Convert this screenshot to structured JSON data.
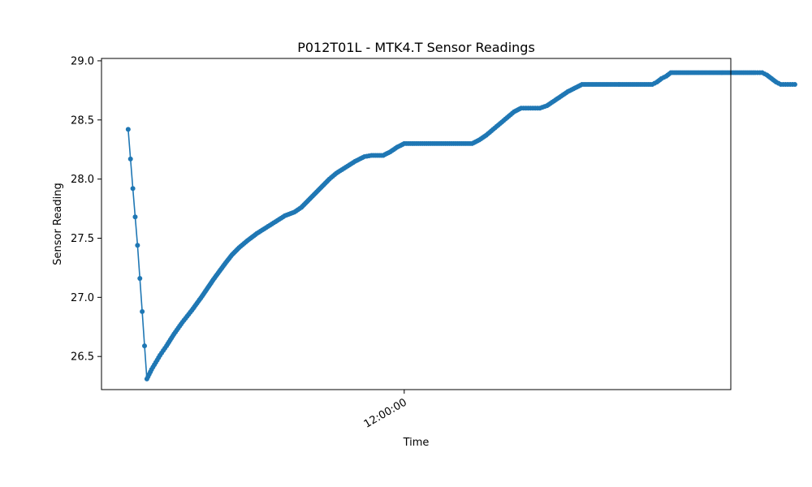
{
  "chart_data": {
    "type": "line",
    "title": "P012T01L - MTK4.T Sensor Readings",
    "xlabel": "Time",
    "ylabel": "Sensor Reading",
    "x_ticks": [
      {
        "label": "12:00:00",
        "minutes": 0
      }
    ],
    "xlim_minutes": [
      -64.7,
      69.8
    ],
    "ylim": [
      26.22,
      29.02
    ],
    "y_ticks": [
      "26.5",
      "27.0",
      "27.5",
      "28.0",
      "28.5",
      "29.0"
    ],
    "grid": false,
    "marker": "circle",
    "series": [
      {
        "color": "#1f77b4",
        "points": [
          [
            -59.0,
            28.42
          ],
          [
            -58.5,
            28.17
          ],
          [
            -58.0,
            27.92
          ],
          [
            -57.5,
            27.68
          ],
          [
            -57.0,
            27.44
          ],
          [
            -56.5,
            27.16
          ],
          [
            -56.0,
            26.88
          ],
          [
            -55.5,
            26.59
          ],
          [
            -55.0,
            26.31
          ],
          [
            -54.5,
            26.35
          ],
          [
            -54.0,
            26.39
          ],
          [
            -53.4,
            26.43
          ],
          [
            -52.8,
            26.47
          ],
          [
            -52.2,
            26.51
          ],
          [
            -51.5,
            26.55
          ],
          [
            -50.8,
            26.59
          ],
          [
            -50.0,
            26.64
          ],
          [
            -49.2,
            26.69
          ],
          [
            -48.3,
            26.74
          ],
          [
            -47.4,
            26.79
          ],
          [
            -46.4,
            26.84
          ],
          [
            -45.4,
            26.89
          ],
          [
            -44.3,
            26.95
          ],
          [
            -43.2,
            27.01
          ],
          [
            -42.0,
            27.08
          ],
          [
            -40.8,
            27.15
          ],
          [
            -39.5,
            27.22
          ],
          [
            -38.2,
            27.29
          ],
          [
            -36.8,
            27.36
          ],
          [
            -35.3,
            27.42
          ],
          [
            -33.5,
            27.48
          ],
          [
            -31.5,
            27.54
          ],
          [
            -29.5,
            27.59
          ],
          [
            -27.5,
            27.64
          ],
          [
            -25.5,
            27.69
          ],
          [
            -23.5,
            27.72
          ],
          [
            -22.0,
            27.76
          ],
          [
            -20.5,
            27.82
          ],
          [
            -19.0,
            27.88
          ],
          [
            -17.5,
            27.94
          ],
          [
            -16.0,
            28.0
          ],
          [
            -14.5,
            28.05
          ],
          [
            -12.5,
            28.1
          ],
          [
            -10.5,
            28.15
          ],
          [
            -8.5,
            28.19
          ],
          [
            -7.0,
            28.2
          ],
          [
            -4.5,
            28.2
          ],
          [
            -3.0,
            28.23
          ],
          [
            -1.5,
            28.27
          ],
          [
            0.0,
            28.3
          ],
          [
            3.0,
            28.3
          ],
          [
            7.0,
            28.3
          ],
          [
            11.0,
            28.3
          ],
          [
            14.5,
            28.3
          ],
          [
            16.0,
            28.33
          ],
          [
            17.5,
            28.37
          ],
          [
            19.0,
            28.42
          ],
          [
            20.5,
            28.47
          ],
          [
            22.0,
            28.52
          ],
          [
            23.5,
            28.57
          ],
          [
            25.0,
            28.6
          ],
          [
            27.0,
            28.6
          ],
          [
            29.0,
            28.6
          ],
          [
            30.5,
            28.62
          ],
          [
            32.0,
            28.66
          ],
          [
            33.5,
            28.7
          ],
          [
            35.0,
            28.74
          ],
          [
            36.5,
            28.77
          ],
          [
            38.0,
            28.8
          ],
          [
            41.0,
            28.8
          ],
          [
            44.0,
            28.8
          ],
          [
            47.0,
            28.8
          ],
          [
            50.0,
            28.8
          ],
          [
            53.0,
            28.8
          ],
          [
            54.0,
            28.82
          ],
          [
            55.0,
            28.85
          ],
          [
            56.0,
            28.87
          ],
          [
            57.0,
            28.9
          ],
          [
            60.0,
            28.9
          ],
          [
            63.0,
            28.9
          ],
          [
            66.0,
            28.9
          ],
          [
            69.0,
            28.9
          ],
          [
            72.0,
            28.9
          ],
          [
            75.0,
            28.9
          ],
          [
            76.5,
            28.9
          ],
          [
            77.5,
            28.88
          ],
          [
            78.5,
            28.85
          ],
          [
            79.5,
            28.82
          ],
          [
            80.5,
            28.8
          ],
          [
            82.0,
            28.8
          ],
          [
            83.5,
            28.8
          ]
        ]
      }
    ]
  }
}
